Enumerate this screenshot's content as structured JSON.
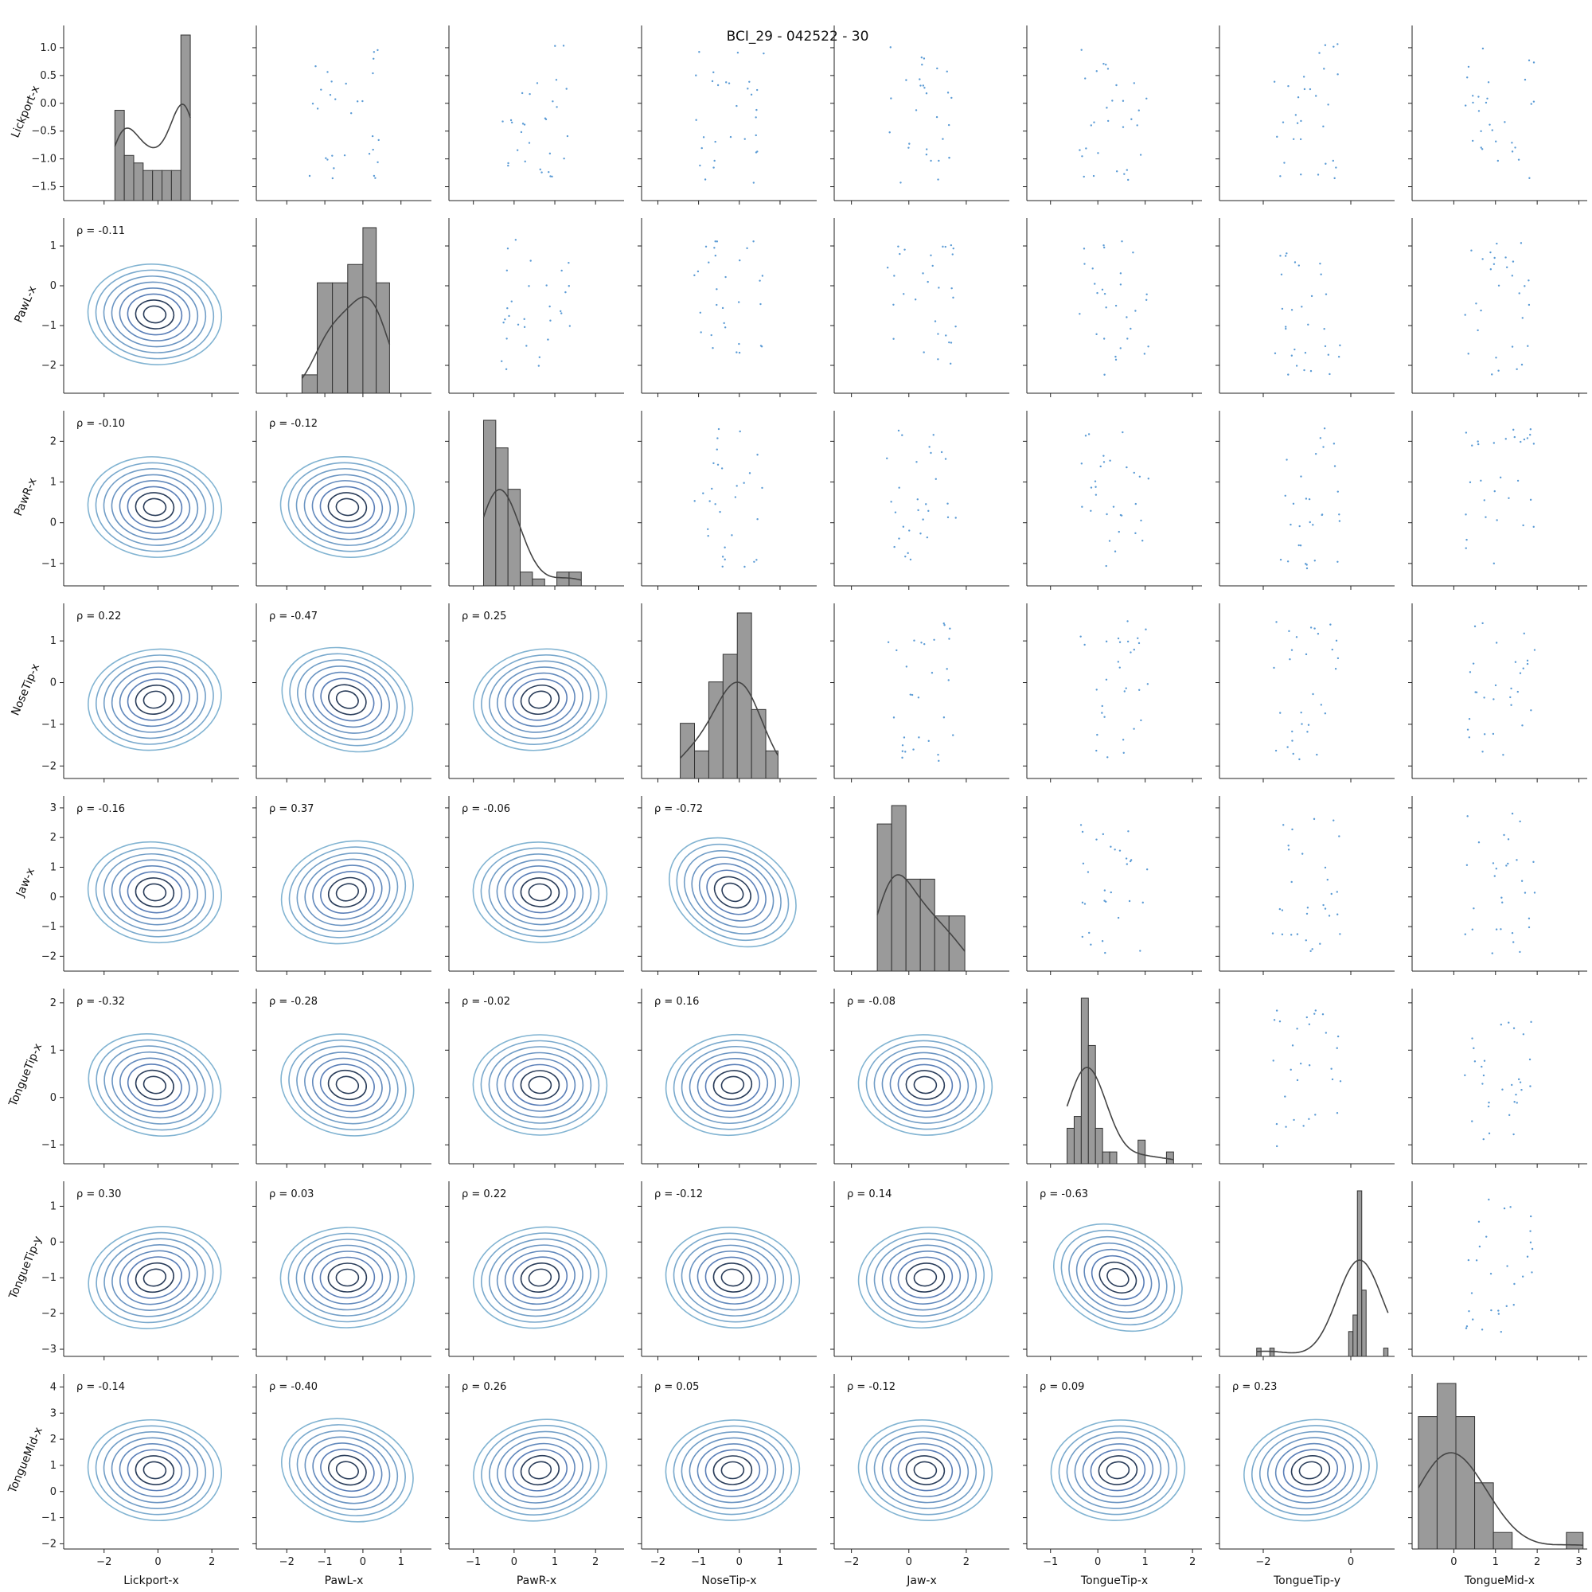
{
  "chart_data": {
    "type": "pairplot",
    "title": "BCI_29 - 042522 - 30",
    "variables": [
      "Lickport-x",
      "PawL-x",
      "PawR-x",
      "NoseTip-x",
      "Jaw-x",
      "TongueTip-x",
      "TongueTip-y",
      "TongueMid-x"
    ],
    "ranges": [
      [
        -3.5,
        3.0
      ],
      [
        -2.4,
        1.7
      ],
      [
        -1.55,
        2.75
      ],
      [
        -2.3,
        1.9
      ],
      [
        -2.4,
        3.4
      ],
      [
        -1.3,
        2.1
      ],
      [
        -3.1,
        1.7
      ],
      [
        -2.2,
        4.5
      ]
    ],
    "ticks": [
      [
        -2,
        0,
        2
      ],
      [
        -2,
        -1,
        0,
        1
      ],
      [
        -1,
        0,
        1,
        2
      ],
      [
        -2,
        -1,
        0,
        1
      ],
      [
        -2,
        0,
        2
      ],
      [
        -1,
        0,
        1,
        2
      ],
      [
        -2,
        0
      ],
      [
        0,
        1,
        2,
        3
      ]
    ],
    "diag_y_ticks": [
      -1.5,
      -1.0,
      -0.5,
      0.0,
      0.5,
      1.0
    ],
    "diag_y_tick_labels": [
      "−1.5",
      "−1.0",
      "−0.5",
      "0.0",
      "0.5",
      "1.0"
    ],
    "diag_y_range": [
      -1.75,
      1.4
    ],
    "row_ticks": [
      [
        -1.5,
        -1.0,
        -0.5,
        0.0,
        0.5,
        1.0
      ],
      [
        -2,
        -1,
        0,
        1
      ],
      [
        -1,
        0,
        1,
        2
      ],
      [
        -2,
        -1,
        0,
        1
      ],
      [
        -2,
        -1,
        0,
        1,
        2,
        3
      ],
      [
        -1,
        0,
        1,
        2
      ],
      [
        -3,
        -2,
        -1,
        0,
        1
      ],
      [
        -2,
        -1,
        0,
        1,
        2,
        3,
        4
      ]
    ],
    "row_tick_labels": [
      [
        "−1.5",
        "−1.0",
        "−0.5",
        "0.0",
        "0.5",
        "1.0"
      ],
      [
        "−2",
        "−1",
        "0",
        "1"
      ],
      [
        "−1",
        "0",
        "1",
        "2"
      ],
      [
        "−2",
        "−1",
        "0",
        "1"
      ],
      [
        "−2",
        "−1",
        "0",
        "1",
        "2",
        "3"
      ],
      [
        "−1",
        "0",
        "1",
        "2"
      ],
      [
        "−3",
        "−2",
        "−1",
        "0",
        "1"
      ],
      [
        "−2",
        "−1",
        "0",
        "1",
        "2",
        "3",
        "4"
      ]
    ],
    "row_ranges": [
      [
        -1.75,
        1.4
      ],
      [
        -2.7,
        1.7
      ],
      [
        -1.55,
        2.75
      ],
      [
        -2.3,
        1.9
      ],
      [
        -2.5,
        3.4
      ],
      [
        -1.4,
        2.3
      ],
      [
        -3.2,
        1.7
      ],
      [
        -2.2,
        4.5
      ]
    ],
    "col_tick_labels": [
      [
        "−2",
        "0",
        "2"
      ],
      [
        "−2",
        "−1",
        "0",
        "1"
      ],
      [
        "−1",
        "0",
        "1",
        "2"
      ],
      [
        "−2",
        "−1",
        "0",
        "1"
      ],
      [
        "−2",
        "0",
        "2"
      ],
      [
        "−1",
        "0",
        "1",
        "2"
      ],
      [
        "−2",
        "0"
      ],
      [
        "0",
        "1",
        "2",
        "3"
      ]
    ],
    "col_ranges": [
      [
        -3.5,
        3.0
      ],
      [
        -2.8,
        1.8
      ],
      [
        -1.6,
        2.7
      ],
      [
        -2.4,
        1.9
      ],
      [
        -2.6,
        3.5
      ],
      [
        -1.5,
        2.2
      ],
      [
        -3.0,
        1.0
      ],
      [
        -1.0,
        3.2
      ]
    ],
    "correlations": [
      {
        "row": 1,
        "col": 0,
        "label": "ρ = -0.11"
      },
      {
        "row": 2,
        "col": 0,
        "label": "ρ = -0.10"
      },
      {
        "row": 2,
        "col": 1,
        "label": "ρ = -0.12"
      },
      {
        "row": 3,
        "col": 0,
        "label": "ρ = 0.22"
      },
      {
        "row": 3,
        "col": 1,
        "label": "ρ = -0.47"
      },
      {
        "row": 3,
        "col": 2,
        "label": "ρ = 0.25"
      },
      {
        "row": 4,
        "col": 0,
        "label": "ρ = -0.16"
      },
      {
        "row": 4,
        "col": 1,
        "label": "ρ = 0.37"
      },
      {
        "row": 4,
        "col": 2,
        "label": "ρ = -0.06"
      },
      {
        "row": 4,
        "col": 3,
        "label": "ρ = -0.72"
      },
      {
        "row": 5,
        "col": 0,
        "label": "ρ = -0.32"
      },
      {
        "row": 5,
        "col": 1,
        "label": "ρ = -0.28"
      },
      {
        "row": 5,
        "col": 2,
        "label": "ρ = -0.02"
      },
      {
        "row": 5,
        "col": 3,
        "label": "ρ = 0.16"
      },
      {
        "row": 5,
        "col": 4,
        "label": "ρ = -0.08"
      },
      {
        "row": 6,
        "col": 0,
        "label": "ρ = 0.30"
      },
      {
        "row": 6,
        "col": 1,
        "label": "ρ = 0.03"
      },
      {
        "row": 6,
        "col": 2,
        "label": "ρ = 0.22"
      },
      {
        "row": 6,
        "col": 3,
        "label": "ρ = -0.12"
      },
      {
        "row": 6,
        "col": 4,
        "label": "ρ = 0.14"
      },
      {
        "row": 6,
        "col": 5,
        "label": "ρ = -0.63"
      },
      {
        "row": 7,
        "col": 0,
        "label": "ρ = -0.14"
      },
      {
        "row": 7,
        "col": 1,
        "label": "ρ = -0.40"
      },
      {
        "row": 7,
        "col": 2,
        "label": "ρ = 0.26"
      },
      {
        "row": 7,
        "col": 3,
        "label": "ρ = 0.05"
      },
      {
        "row": 7,
        "col": 4,
        "label": "ρ = -0.12"
      },
      {
        "row": 7,
        "col": 5,
        "label": "ρ = 0.09"
      },
      {
        "row": 7,
        "col": 6,
        "label": "ρ = 0.23"
      }
    ],
    "histograms": [
      {
        "var": "Lickport-x",
        "bins": [
          -1.6,
          -1.25,
          -0.9,
          -0.55,
          -0.2,
          0.15,
          0.5,
          0.85,
          1.2
        ],
        "counts": [
          6,
          3,
          2.5,
          2,
          2,
          2,
          2,
          11
        ]
      },
      {
        "var": "PawL-x",
        "bins": [
          -1.6,
          -1.2,
          -0.8,
          -0.4,
          0.0,
          0.35,
          0.7
        ],
        "counts": [
          1,
          6,
          6,
          7,
          9,
          6
        ]
      },
      {
        "var": "PawR-x",
        "bins": [
          -0.75,
          -0.45,
          -0.15,
          0.15,
          0.45,
          0.75,
          1.05,
          1.35,
          1.65
        ],
        "counts": [
          12,
          10,
          7,
          1,
          0.5,
          0,
          1,
          1
        ]
      },
      {
        "var": "NoseTip-x",
        "bins": [
          -1.45,
          -1.1,
          -0.75,
          -0.4,
          -0.05,
          0.3,
          0.65,
          0.95
        ],
        "counts": [
          4,
          2,
          7,
          9,
          12,
          5,
          2
        ]
      },
      {
        "var": "Jaw-x",
        "bins": [
          -1.1,
          -0.6,
          -0.1,
          0.4,
          0.9,
          1.4,
          1.95
        ],
        "counts": [
          8,
          9,
          5,
          5,
          3,
          3
        ]
      },
      {
        "var": "TongueTip-x",
        "bins": [
          -0.65,
          -0.5,
          -0.35,
          -0.2,
          -0.05,
          0.1,
          0.25,
          0.4,
          0.55,
          0.7,
          0.85,
          1.0,
          1.15,
          1.3,
          1.45,
          1.6
        ],
        "counts": [
          3,
          4,
          14,
          10,
          3,
          1,
          1,
          0,
          0,
          0,
          2,
          0,
          0,
          0,
          1
        ]
      },
      {
        "var": "TongueTip-y",
        "bins": [
          -2.15,
          -2.05,
          -1.95,
          -1.85,
          -1.75,
          -1.65,
          -1.55,
          -1.45,
          -1.35,
          -1.25,
          -1.15,
          -1.05,
          -0.95,
          -0.85,
          -0.75,
          -0.65,
          -0.55,
          -0.45,
          -0.35,
          -0.25,
          -0.15,
          -0.05,
          0.05,
          0.15,
          0.25,
          0.35,
          0.45,
          0.55,
          0.65,
          0.75,
          0.85
        ],
        "counts": [
          1,
          0,
          0,
          1,
          0,
          0,
          0,
          0,
          0,
          0,
          0,
          0,
          0,
          0,
          0,
          0,
          0,
          0,
          0,
          0,
          0,
          3,
          5,
          20,
          8,
          0,
          0,
          0,
          0,
          1
        ]
      },
      {
        "var": "TongueMid-x",
        "bins": [
          -0.85,
          -0.4,
          0.05,
          0.5,
          0.95,
          1.4,
          1.85,
          2.3,
          2.7,
          3.1
        ],
        "counts": [
          8,
          10,
          8,
          4,
          1,
          0,
          0,
          0,
          1
        ]
      }
    ]
  }
}
